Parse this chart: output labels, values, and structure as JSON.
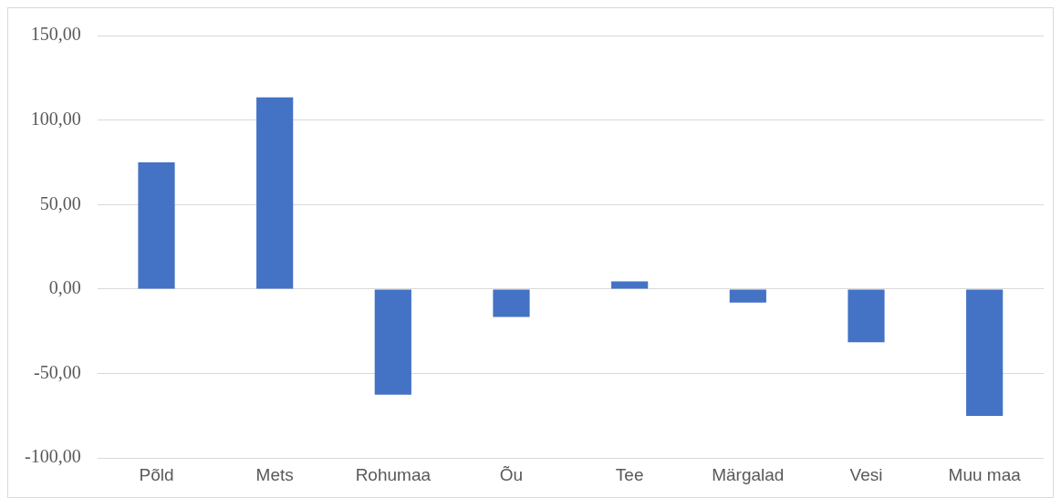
{
  "chart_data": {
    "type": "bar",
    "categories": [
      "Põld",
      "Mets",
      "Rohumaa",
      "Õu",
      "Tee",
      "Märgalad",
      "Vesi",
      "Muu maa"
    ],
    "values": [
      75,
      113.5,
      -62.5,
      -16.5,
      4.5,
      -8,
      -31.5,
      -75
    ],
    "color": "#4472c4",
    "ylim": [
      -100,
      150
    ],
    "yticks": [
      {
        "value": -100,
        "label": "-100,00"
      },
      {
        "value": -50,
        "label": "-50,00"
      },
      {
        "value": 0,
        "label": "0,00"
      },
      {
        "value": 50,
        "label": "50,00"
      },
      {
        "value": 100,
        "label": "100,00"
      },
      {
        "value": 150,
        "label": "150,00"
      }
    ],
    "grid": "y",
    "legend": false
  }
}
